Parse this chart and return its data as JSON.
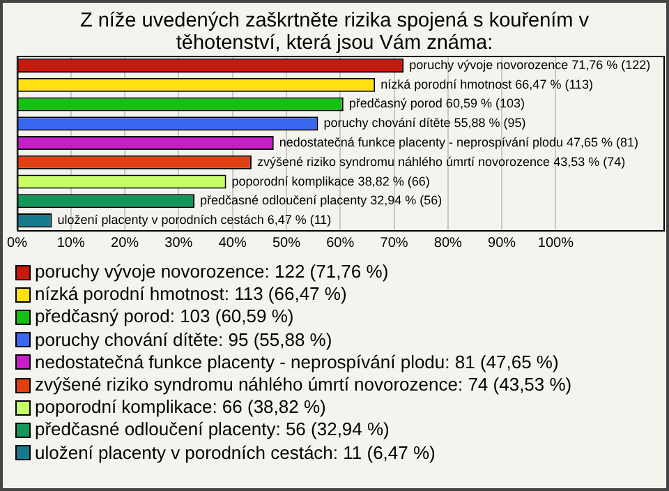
{
  "chart_data": {
    "type": "bar",
    "orientation": "horizontal",
    "stacked": true,
    "title": "Z níže uvedených zaškrtněte rizika spojená s kouřením v těhotenství, která jsou Vám známa:",
    "categories": [
      null,
      null,
      null,
      null,
      null,
      null,
      null,
      null,
      null
    ],
    "xlim": [
      0,
      120
    ],
    "xticks": [
      {
        "value": 0,
        "label": "0%"
      },
      {
        "value": 10,
        "label": "10%"
      },
      {
        "value": 20,
        "label": "20%"
      },
      {
        "value": 30,
        "label": "30%"
      },
      {
        "value": 40,
        "label": "40%"
      },
      {
        "value": 50,
        "label": "50%"
      },
      {
        "value": 60,
        "label": "60%"
      },
      {
        "value": 70,
        "label": "70%"
      },
      {
        "value": 80,
        "label": "80%"
      },
      {
        "value": 90,
        "label": "90%"
      },
      {
        "value": 100,
        "label": "100%"
      }
    ],
    "grid": "x",
    "legend": "bottom",
    "series": [
      {
        "name": "poruchy vývoje novorozence: 122 (71,76 %)",
        "color": "#c8190e",
        "values": [
          71.76,
          null,
          null,
          null,
          null,
          null,
          null,
          null,
          null
        ],
        "value_labels": [
          "poruchy vývoje novorozence 71,76 % (122)",
          null,
          null,
          null,
          null,
          null,
          null,
          null,
          null
        ]
      },
      {
        "name": "nízká porodní hmotnost: 113 (66,47 %)",
        "color": "#ffe010",
        "values": [
          null,
          66.47,
          null,
          null,
          null,
          null,
          null,
          null,
          null
        ],
        "value_labels": [
          null,
          "nízká porodní hmotnost 66,47 % (113)",
          null,
          null,
          null,
          null,
          null,
          null,
          null
        ]
      },
      {
        "name": "předčasný porod: 103 (60,59 %)",
        "color": "#14c014",
        "values": [
          null,
          null,
          60.59,
          null,
          null,
          null,
          null,
          null,
          null
        ],
        "value_labels": [
          null,
          null,
          "předčasný porod 60,59 % (103)",
          null,
          null,
          null,
          null,
          null,
          null
        ]
      },
      {
        "name": "poruchy chování dítěte: 95 (55,88 %)",
        "color": "#3a66f0",
        "values": [
          null,
          null,
          null,
          55.88,
          null,
          null,
          null,
          null,
          null
        ],
        "value_labels": [
          null,
          null,
          null,
          "poruchy chování dítěte 55,88 % (95)",
          null,
          null,
          null,
          null,
          null
        ]
      },
      {
        "name": "nedostatečná funkce placenty - neprospívání plodu: 81 (47,65 %)",
        "color": "#c81ec8",
        "values": [
          null,
          null,
          null,
          null,
          47.65,
          null,
          null,
          null,
          null
        ],
        "value_labels": [
          null,
          null,
          null,
          null,
          "nedostatečná funkce placenty - neprospívání plodu 47,65 % (81)",
          null,
          null,
          null,
          null
        ]
      },
      {
        "name": "zvýšené riziko syndromu náhlého úmrtí novorozence: 74 (43,53 %)",
        "color": "#e0400f",
        "values": [
          null,
          null,
          null,
          null,
          null,
          43.53,
          null,
          null,
          null
        ],
        "value_labels": [
          null,
          null,
          null,
          null,
          null,
          "zvýšené riziko syndromu náhlého úmrtí novorozence 43,53 % (74)",
          null,
          null,
          null
        ]
      },
      {
        "name": "poporodní komplikace: 66 (38,82 %)",
        "color": "#c8ff66",
        "values": [
          null,
          null,
          null,
          null,
          null,
          null,
          38.82,
          null,
          null
        ],
        "value_labels": [
          null,
          null,
          null,
          null,
          null,
          null,
          "poporodní komplikace 38,82 % (66)",
          null,
          null
        ]
      },
      {
        "name": "předčasné odloučení placenty: 56 (32,94 %)",
        "color": "#14965a",
        "values": [
          null,
          null,
          null,
          null,
          null,
          null,
          null,
          32.94,
          null
        ],
        "value_labels": [
          null,
          null,
          null,
          null,
          null,
          null,
          null,
          "předčasné odloučení placenty 32,94 % (56)",
          null
        ]
      },
      {
        "name": "uložení placenty v porodních cestách: 11 (6,47 %)",
        "color": "#177a8c",
        "values": [
          null,
          null,
          null,
          null,
          null,
          null,
          null,
          null,
          6.47
        ],
        "value_labels": [
          null,
          null,
          null,
          null,
          null,
          null,
          null,
          null,
          "uložení placenty v porodních cestách 6,47 % (11)"
        ]
      }
    ]
  }
}
